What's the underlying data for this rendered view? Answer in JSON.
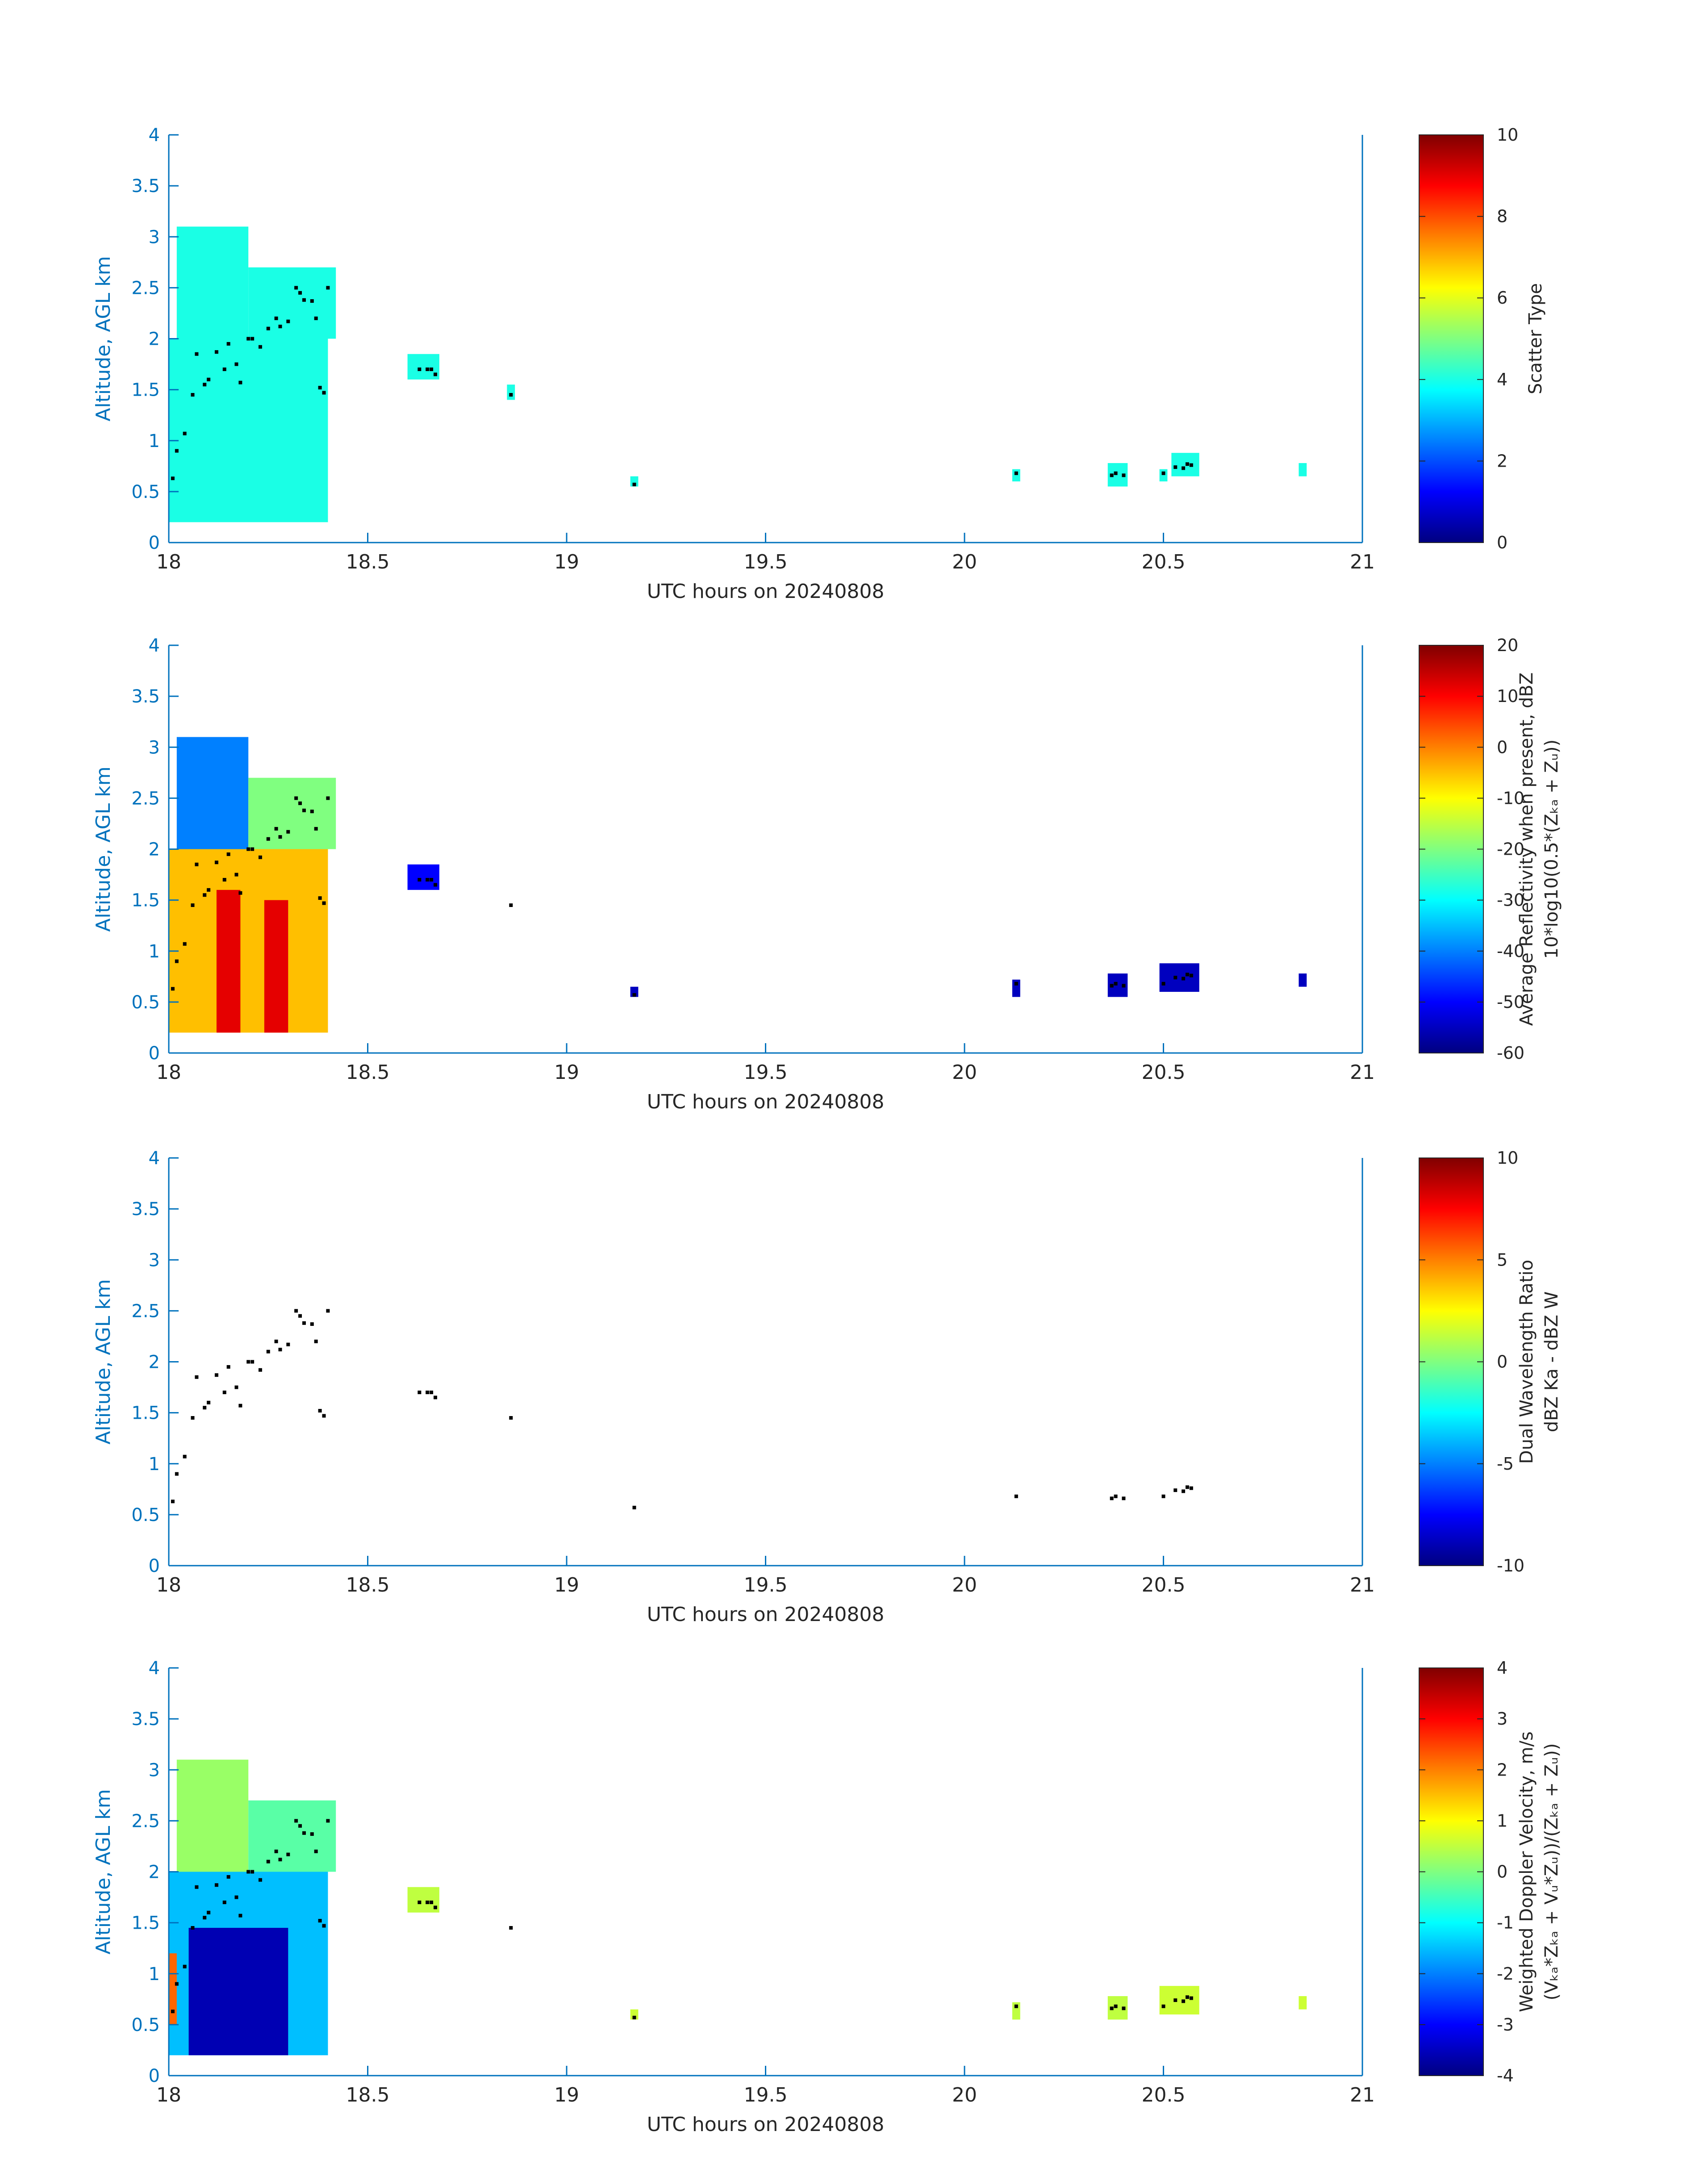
{
  "figure": {
    "xlabel": "UTC hours on 20240808",
    "ylabel": "Altitude, AGL km",
    "xlim": [
      18,
      21
    ],
    "ylim": [
      0,
      4
    ],
    "xticks": [
      "18",
      "18.5",
      "19",
      "19.5",
      "20",
      "20.5",
      "21"
    ],
    "yticks": [
      "0",
      "0.5",
      "1",
      "1.5",
      "2",
      "2.5",
      "3",
      "3.5",
      "4"
    ],
    "axis_color": "#0072BD",
    "colormap": "jet"
  },
  "chart_data": [
    {
      "type": "heatmap",
      "panel": "scatter-type",
      "colorbar": {
        "label_lines": [
          "Scatter Type"
        ],
        "ticks": [
          "0",
          "2",
          "4",
          "6",
          "8",
          "10"
        ],
        "clim": [
          0,
          10
        ]
      },
      "regions": [
        {
          "x": [
            18.0,
            18.4
          ],
          "y": [
            0.2,
            2.0
          ],
          "value": 4
        },
        {
          "x": [
            18.02,
            18.2
          ],
          "y": [
            2.0,
            3.1
          ],
          "value": 4
        },
        {
          "x": [
            18.2,
            18.42
          ],
          "y": [
            2.0,
            2.7
          ],
          "value": 4
        },
        {
          "x": [
            18.6,
            18.68
          ],
          "y": [
            1.6,
            1.85
          ],
          "value": 4
        },
        {
          "x": [
            18.85,
            18.87
          ],
          "y": [
            1.4,
            1.55
          ],
          "value": 4
        },
        {
          "x": [
            19.16,
            19.18
          ],
          "y": [
            0.55,
            0.65
          ],
          "value": 4
        },
        {
          "x": [
            20.12,
            20.14
          ],
          "y": [
            0.6,
            0.72
          ],
          "value": 4
        },
        {
          "x": [
            20.36,
            20.41
          ],
          "y": [
            0.55,
            0.78
          ],
          "value": 4
        },
        {
          "x": [
            20.49,
            20.51
          ],
          "y": [
            0.6,
            0.72
          ],
          "value": 4
        },
        {
          "x": [
            20.52,
            20.59
          ],
          "y": [
            0.65,
            0.88
          ],
          "value": 4
        },
        {
          "x": [
            20.84,
            20.86
          ],
          "y": [
            0.65,
            0.78
          ],
          "value": 4
        }
      ]
    },
    {
      "type": "heatmap",
      "panel": "reflectivity",
      "colorbar": {
        "label_lines": [
          "Average Reflectivity when present, dBZ",
          "10*log10(0.5*(Zₖₐ + Zᵤ))"
        ],
        "ticks": [
          "-60",
          "-50",
          "-40",
          "-30",
          "-20",
          "-10",
          "0",
          "10",
          "20"
        ],
        "clim": [
          -60,
          20
        ]
      },
      "regions": [
        {
          "x": [
            18.0,
            18.4
          ],
          "y": [
            0.2,
            2.0
          ],
          "value": -5
        },
        {
          "x": [
            18.12,
            18.18
          ],
          "y": [
            0.2,
            1.6
          ],
          "value": 12
        },
        {
          "x": [
            18.24,
            18.3
          ],
          "y": [
            0.2,
            1.5
          ],
          "value": 12
        },
        {
          "x": [
            18.02,
            18.2
          ],
          "y": [
            2.0,
            3.1
          ],
          "value": -40
        },
        {
          "x": [
            18.2,
            18.42
          ],
          "y": [
            2.0,
            2.7
          ],
          "value": -20
        },
        {
          "x": [
            18.6,
            18.68
          ],
          "y": [
            1.6,
            1.85
          ],
          "value": -50
        },
        {
          "x": [
            19.16,
            19.18
          ],
          "y": [
            0.55,
            0.65
          ],
          "value": -55
        },
        {
          "x": [
            20.12,
            20.14
          ],
          "y": [
            0.55,
            0.72
          ],
          "value": -55
        },
        {
          "x": [
            20.36,
            20.41
          ],
          "y": [
            0.55,
            0.78
          ],
          "value": -55
        },
        {
          "x": [
            20.49,
            20.59
          ],
          "y": [
            0.6,
            0.88
          ],
          "value": -55
        },
        {
          "x": [
            20.84,
            20.86
          ],
          "y": [
            0.65,
            0.78
          ],
          "value": -55
        }
      ]
    },
    {
      "type": "heatmap",
      "panel": "dual-wavelength-ratio",
      "colorbar": {
        "label_lines": [
          "Dual Wavelength Ratio",
          "dBZ Ka - dBZ W"
        ],
        "ticks": [
          "-10",
          "-5",
          "0",
          "5",
          "10"
        ],
        "clim": [
          -10,
          10
        ]
      },
      "regions": []
    },
    {
      "type": "heatmap",
      "panel": "doppler-velocity",
      "colorbar": {
        "label_lines": [
          "Weighted Doppler Velocity, m/s",
          "(Vₖₐ*Zₖₐ + Vᵤ*Zᵤ))/(Zₖₐ + Zᵤ))"
        ],
        "ticks": [
          "-4",
          "-3",
          "-2",
          "-1",
          "0",
          "1",
          "2",
          "3",
          "4"
        ],
        "clim": [
          -4,
          4
        ]
      },
      "regions": [
        {
          "x": [
            18.0,
            18.4
          ],
          "y": [
            0.2,
            2.0
          ],
          "value": -1.5
        },
        {
          "x": [
            18.05,
            18.3
          ],
          "y": [
            0.2,
            1.45
          ],
          "value": -3.6
        },
        {
          "x": [
            18.0,
            18.02
          ],
          "y": [
            0.5,
            1.2
          ],
          "value": 2.2
        },
        {
          "x": [
            18.02,
            18.2
          ],
          "y": [
            2.0,
            3.1
          ],
          "value": 0.2
        },
        {
          "x": [
            18.2,
            18.42
          ],
          "y": [
            2.0,
            2.7
          ],
          "value": -0.3
        },
        {
          "x": [
            18.6,
            18.68
          ],
          "y": [
            1.6,
            1.85
          ],
          "value": 0.5
        },
        {
          "x": [
            19.16,
            19.18
          ],
          "y": [
            0.55,
            0.65
          ],
          "value": 0.6
        },
        {
          "x": [
            20.12,
            20.14
          ],
          "y": [
            0.55,
            0.72
          ],
          "value": 0.5
        },
        {
          "x": [
            20.36,
            20.41
          ],
          "y": [
            0.55,
            0.78
          ],
          "value": 0.5
        },
        {
          "x": [
            20.49,
            20.59
          ],
          "y": [
            0.6,
            0.88
          ],
          "value": 0.6
        },
        {
          "x": [
            20.84,
            20.86
          ],
          "y": [
            0.65,
            0.78
          ],
          "value": 0.6
        }
      ]
    }
  ],
  "cloud_base_points": {
    "x": [
      18.01,
      18.02,
      18.04,
      18.06,
      18.07,
      18.09,
      18.1,
      18.12,
      18.14,
      18.15,
      18.17,
      18.18,
      18.2,
      18.21,
      18.23,
      18.25,
      18.27,
      18.28,
      18.3,
      18.32,
      18.33,
      18.34,
      18.36,
      18.37,
      18.38,
      18.39,
      18.4,
      18.63,
      18.65,
      18.66,
      18.67,
      18.86,
      19.17,
      20.13,
      20.37,
      20.38,
      20.4,
      20.5,
      20.53,
      20.55,
      20.56,
      20.57
    ],
    "y": [
      0.63,
      0.9,
      1.07,
      1.45,
      1.85,
      1.55,
      1.6,
      1.87,
      1.7,
      1.95,
      1.75,
      1.57,
      2.0,
      2.0,
      1.92,
      2.1,
      2.2,
      2.12,
      2.17,
      2.5,
      2.45,
      2.38,
      2.37,
      2.2,
      1.52,
      1.47,
      2.5,
      1.7,
      1.7,
      1.7,
      1.65,
      1.45,
      0.57,
      0.68,
      0.66,
      0.68,
      0.66,
      0.68,
      0.74,
      0.73,
      0.77,
      0.76
    ]
  }
}
